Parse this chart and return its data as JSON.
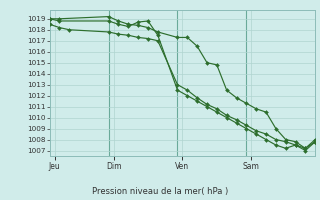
{
  "background_color": "#d0ecea",
  "grid_color": "#b0d4d0",
  "line_color": "#2d6e2d",
  "marker_color": "#2d6e2d",
  "ylabel_ticks": [
    1007,
    1008,
    1009,
    1010,
    1011,
    1012,
    1013,
    1014,
    1015,
    1016,
    1017,
    1018,
    1019
  ],
  "ylim": [
    1006.5,
    1019.8
  ],
  "xlabel": "Pression niveau de la mer( hPa )",
  "day_labels": [
    "Jeu",
    "Dim",
    "Ven",
    "Sam"
  ],
  "vline_x": [
    0.12,
    0.38,
    0.65
  ],
  "line1_x": [
    0,
    1,
    6,
    7,
    8,
    9,
    10,
    11,
    13,
    14,
    15,
    16,
    17,
    18,
    19,
    20,
    21,
    22,
    23,
    24,
    25,
    26,
    27
  ],
  "line1_y": [
    1019.0,
    1019.0,
    1019.2,
    1018.8,
    1018.5,
    1018.4,
    1018.2,
    1017.8,
    1017.3,
    1017.3,
    1016.5,
    1015.0,
    1014.8,
    1012.5,
    1011.8,
    1011.3,
    1010.8,
    1010.5,
    1009.0,
    1008.0,
    1007.8,
    1007.2,
    1008.0
  ],
  "line2_x": [
    0,
    1,
    2,
    6,
    7,
    8,
    9,
    10,
    11,
    13,
    14,
    15,
    16,
    17,
    18,
    19,
    20,
    21,
    22,
    23,
    24,
    25,
    26,
    27
  ],
  "line2_y": [
    1018.5,
    1018.2,
    1018.0,
    1017.8,
    1017.6,
    1017.5,
    1017.3,
    1017.2,
    1017.0,
    1013.0,
    1012.5,
    1011.8,
    1011.2,
    1010.8,
    1010.2,
    1009.8,
    1009.3,
    1008.8,
    1008.5,
    1008.0,
    1007.8,
    1007.5,
    1007.2,
    1007.8
  ],
  "line3_x": [
    0,
    1,
    6,
    7,
    8,
    9,
    10,
    11,
    13,
    14,
    15,
    16,
    17,
    18,
    19,
    20,
    21,
    22,
    23,
    24,
    25,
    26,
    27
  ],
  "line3_y": [
    1019.0,
    1018.8,
    1018.8,
    1018.5,
    1018.3,
    1018.7,
    1018.8,
    1017.5,
    1012.5,
    1012.0,
    1011.5,
    1011.0,
    1010.5,
    1010.0,
    1009.5,
    1009.0,
    1008.5,
    1008.0,
    1007.5,
    1007.2,
    1007.5,
    1007.0,
    1007.8
  ]
}
